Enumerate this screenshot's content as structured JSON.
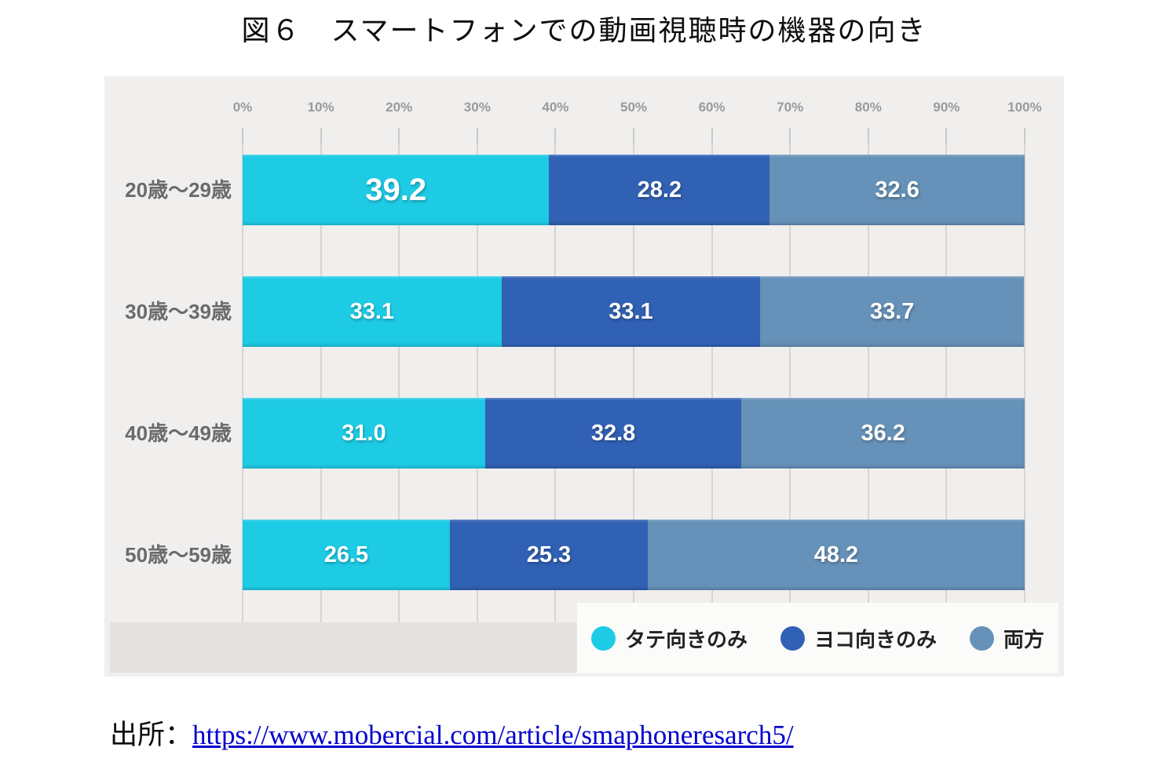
{
  "title": "図６　スマートフォンでの動画視聴時の機器の向き",
  "source": {
    "prefix": "出所：",
    "link_text": "https://www.mobercial.com/article/smaphoneresarch5/"
  },
  "chart_data": {
    "type": "bar",
    "stacked": true,
    "orientation": "horizontal",
    "title": "図６　スマートフォンでの動画視聴時の機器の向き",
    "categories": [
      "20歳〜29歳",
      "30歳〜39歳",
      "40歳〜49歳",
      "50歳〜59歳"
    ],
    "series": [
      {
        "name": "タテ向きのみ",
        "color": "#1dcbe5",
        "values": [
          39.2,
          33.1,
          31.0,
          26.5
        ]
      },
      {
        "name": "ヨコ向きのみ",
        "color": "#3161b4",
        "values": [
          28.2,
          33.1,
          32.8,
          25.3
        ]
      },
      {
        "name": "両方",
        "color": "#6691b8",
        "values": [
          32.6,
          33.7,
          36.2,
          48.2
        ]
      }
    ],
    "x_ticks": [
      "0%",
      "10%",
      "20%",
      "30%",
      "40%",
      "50%",
      "60%",
      "70%",
      "80%",
      "90%",
      "100%"
    ],
    "xlim": [
      0,
      100
    ],
    "value_decimals": 1,
    "emphasis": {
      "category_index": 0,
      "series_index": 0
    },
    "grid": true,
    "legend_position": "bottom-right",
    "colors": {
      "panel_background": "#f0efee",
      "axis_label": "#9a9a9a",
      "category_label": "#6b6b6b",
      "value_label": "#ffffff",
      "link": "#0000cc"
    }
  }
}
